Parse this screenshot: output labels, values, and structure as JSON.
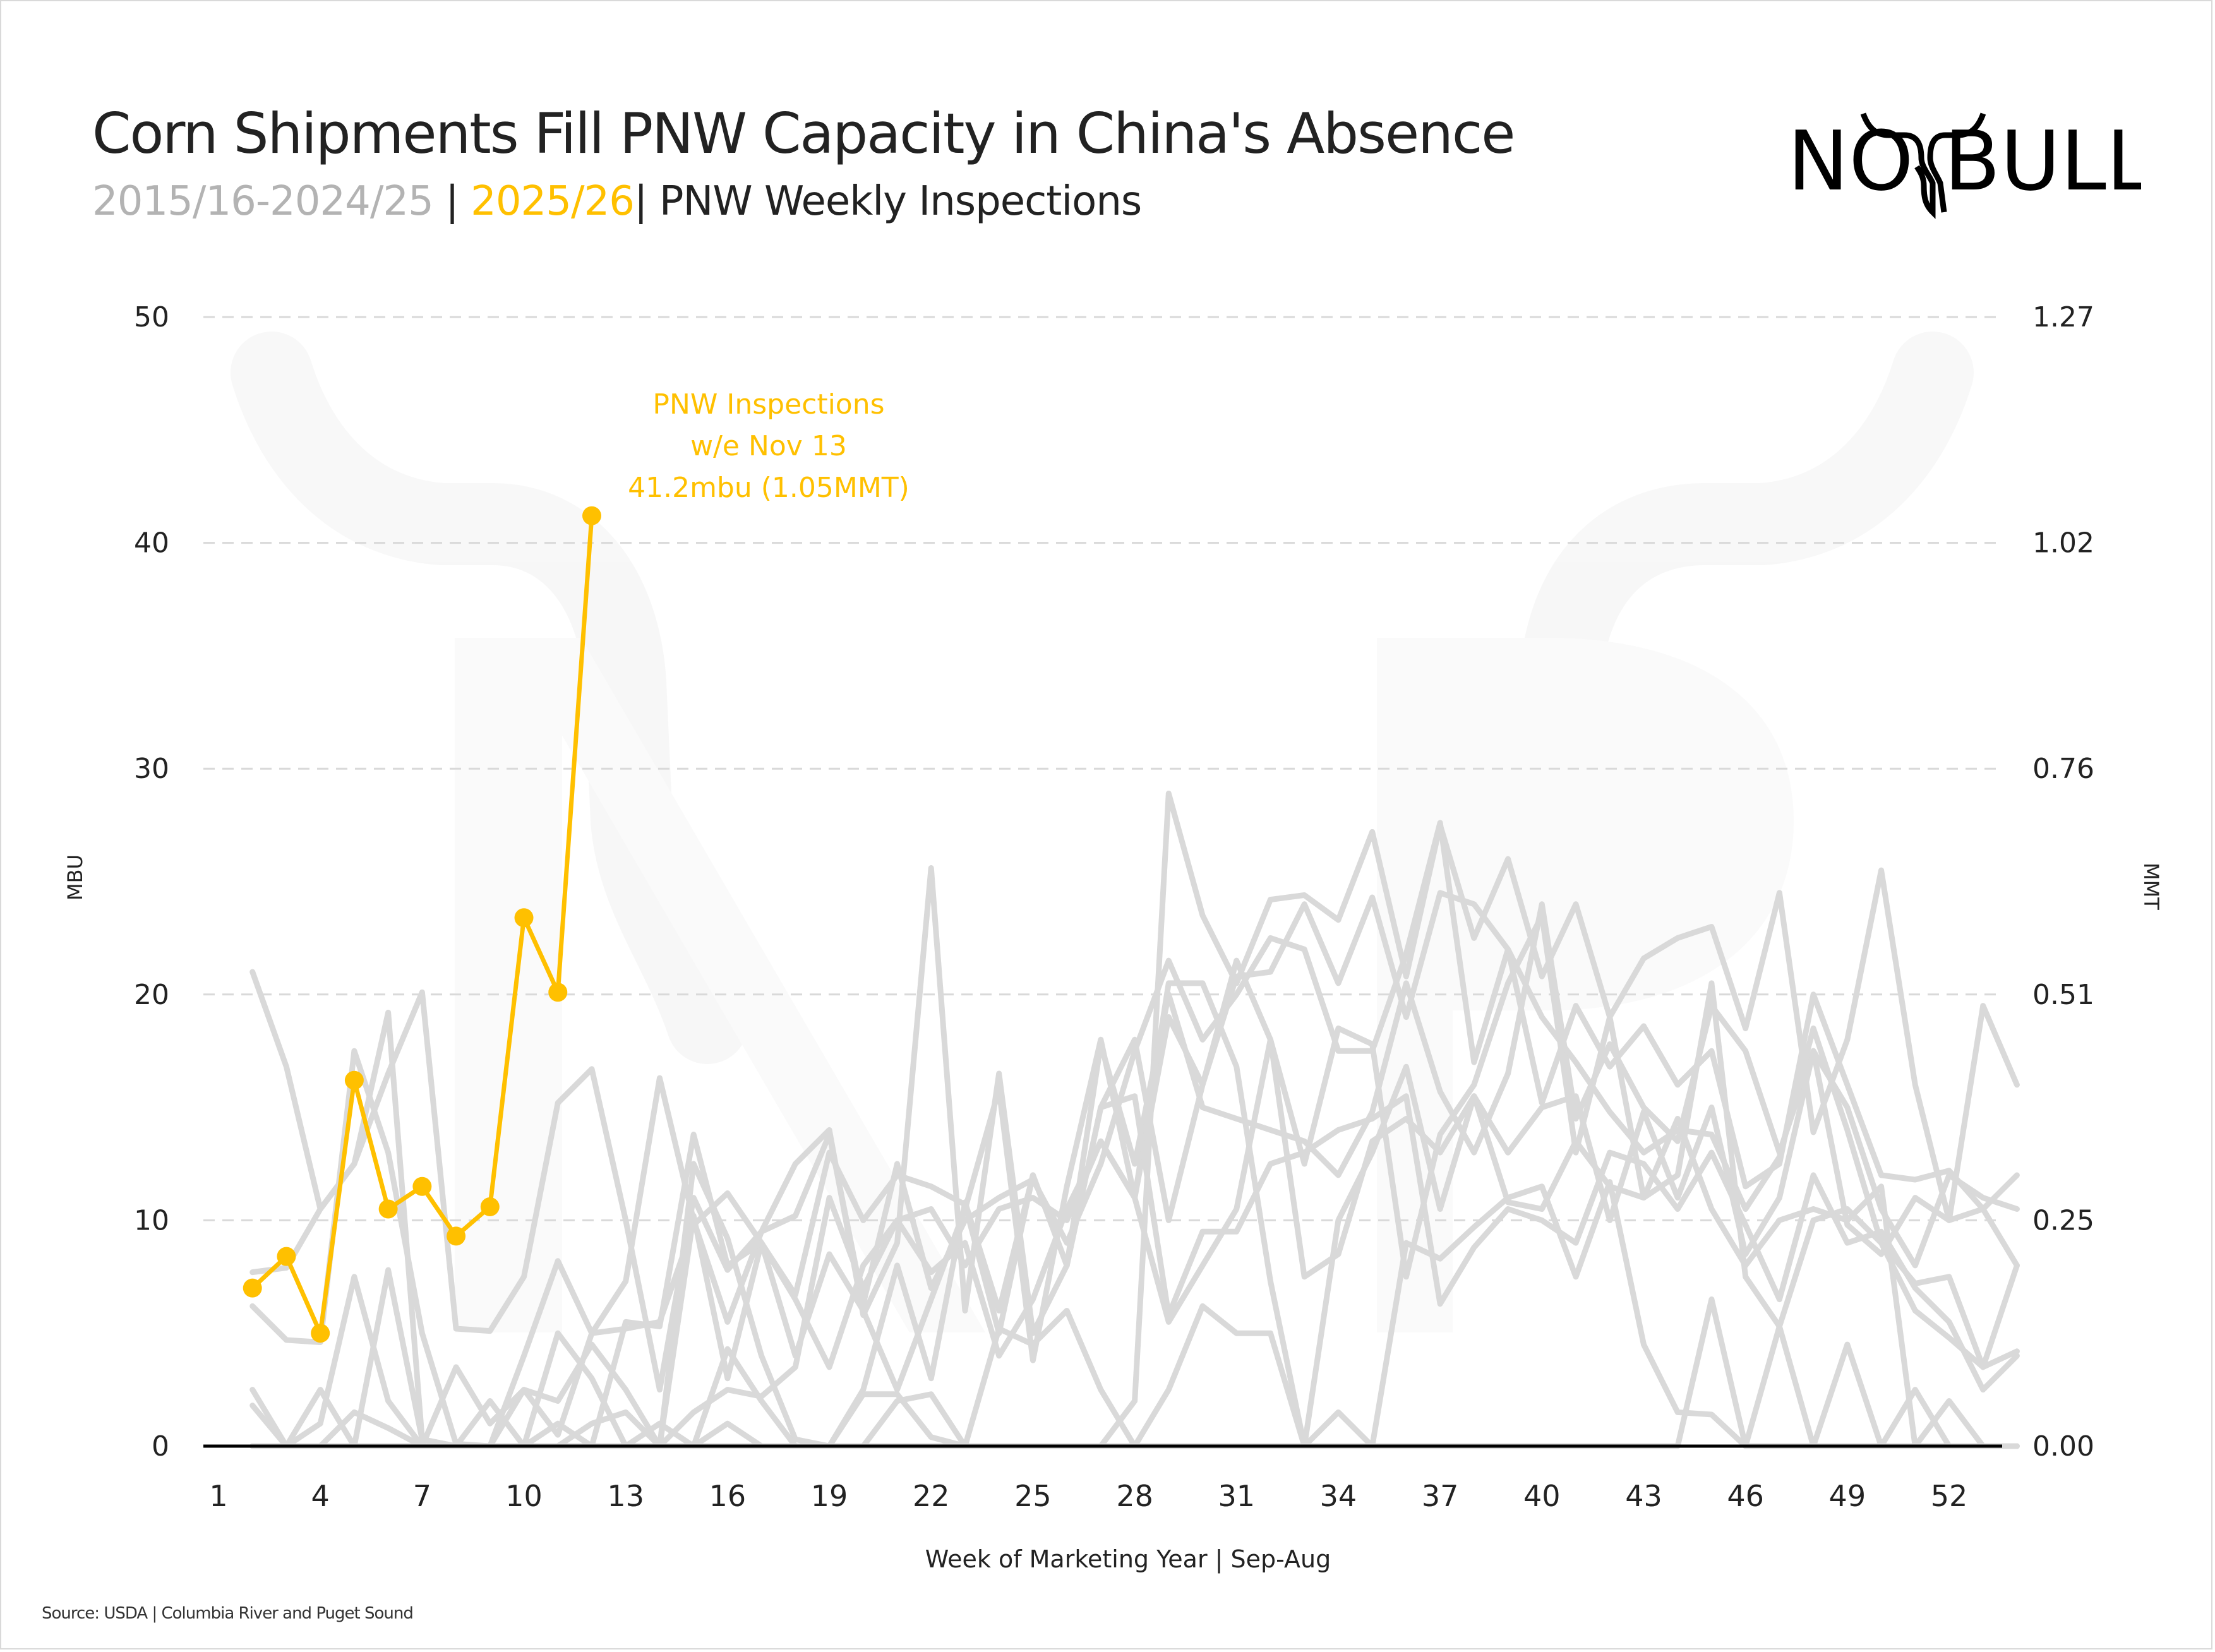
{
  "header": {
    "title": "Corn Shipments Fill PNW Capacity in China's Absence",
    "subtitle_hist": "2015/16-2024/25",
    "subtitle_sep1": "|",
    "subtitle_cur": "2025/26",
    "subtitle_sep2": "|",
    "subtitle_main": "PNW Weekly Inspections"
  },
  "logo": {
    "text_left": "NO",
    "text_right": "BULL",
    "icon": "bull-horns-icon"
  },
  "footer": {
    "source": "Source: USDA | Columbia River and Puget Sound"
  },
  "colors": {
    "current": "#ffc000",
    "history": "#d9d9d9",
    "grid": "#d9d9d9",
    "axis": "#000000",
    "text": "#222222"
  },
  "chart_data": {
    "type": "line",
    "title": "Corn Shipments Fill PNW Capacity in China's Absence",
    "xlabel": "Week of Marketing Year | Sep-Aug",
    "ylabel": "MBU",
    "y2label": "MMT",
    "xlim": [
      1,
      53
    ],
    "ylim": [
      0,
      50
    ],
    "x_ticks": [
      1,
      4,
      7,
      10,
      13,
      16,
      19,
      22,
      25,
      28,
      31,
      34,
      37,
      40,
      43,
      46,
      49,
      52
    ],
    "y_ticks": [
      0,
      10,
      20,
      30,
      40,
      50
    ],
    "y2_ticks": [
      "0.00",
      "0.25",
      "0.51",
      "0.76",
      "1.02",
      "1.27"
    ],
    "grid": true,
    "annotation": {
      "lines": [
        "PNW Inspections",
        "w/e Nov 13",
        "41.2mbu (1.05MMT)"
      ],
      "x": 12,
      "y": 41.2
    },
    "current_series": {
      "name": "2025/26",
      "x": [
        2,
        3,
        4,
        5,
        6,
        7,
        8,
        9,
        10,
        11,
        12
      ],
      "values": [
        7.0,
        8.4,
        5.0,
        16.2,
        10.5,
        11.5,
        9.3,
        10.6,
        23.4,
        20.1,
        41.2
      ]
    },
    "history_x_start": 2,
    "history_series": [
      {
        "name": "hist-1",
        "values": [
          21.0,
          16.8,
          10.5,
          12.5,
          19.2,
          0.3,
          0.0,
          0.0,
          0.0,
          1.0,
          0.0,
          0.0,
          1.0,
          0.0,
          1.0,
          0.0,
          0.0,
          0.0,
          2.3,
          2.3,
          0.4,
          0.0,
          0.0,
          0.0,
          0.0,
          0.0,
          2.0,
          28.9,
          23.5,
          20.5,
          24.2,
          24.4,
          23.3,
          27.2,
          20.8,
          27.5,
          22.5,
          26.0,
          20.8,
          24.0,
          19.0,
          21.6,
          22.5,
          23.0,
          18.5,
          24.5,
          13.9,
          18.0,
          25.5,
          16.0,
          10.0,
          19.5,
          16.0
        ]
      },
      {
        "name": "hist-2",
        "values": [
          7.7,
          7.9,
          10.5,
          12.5,
          16.5,
          20.1,
          5.2,
          5.1,
          7.5,
          15.2,
          16.7,
          10.0,
          2.5,
          11.0,
          7.8,
          9.5,
          10.2,
          13.8,
          6.3,
          12.5,
          7.0,
          10.0,
          11.0,
          11.8,
          9.0,
          12.5,
          17.5,
          21.5,
          18.0,
          20.0,
          22.5,
          22.0,
          17.5,
          17.5,
          21.8,
          27.6,
          17.0,
          22.0,
          15.2,
          19.5,
          16.8,
          18.6,
          16.0,
          17.5,
          11.5,
          12.5,
          20.0,
          16.0,
          12.0,
          11.8,
          12.2,
          10.5,
          8.0
        ]
      },
      {
        "name": "hist-3",
        "values": [
          6.2,
          4.7,
          4.6,
          17.5,
          13.0,
          5.0,
          0.1,
          0.0,
          4.0,
          8.2,
          5.0,
          7.3,
          16.3,
          10.0,
          5.5,
          9.5,
          12.5,
          14.0,
          5.8,
          9.0,
          25.6,
          6.0,
          16.5,
          5.0,
          8.0,
          17.8,
          12.5,
          20.0,
          15.0,
          14.5,
          14.0,
          13.5,
          12.0,
          14.8,
          20.5,
          15.7,
          13.0,
          16.5,
          24.0,
          14.5,
          17.8,
          15.0,
          13.5,
          19.5,
          17.5,
          13.0,
          17.5,
          15.0,
          10.5,
          8.0,
          12.0,
          11.0,
          10.5
        ]
      },
      {
        "name": "hist-4",
        "values": [
          2.5,
          0.0,
          2.5,
          0.0,
          7.8,
          0.3,
          0.0,
          2.0,
          0.0,
          5.0,
          3.0,
          0.0,
          0.0,
          12.5,
          9.2,
          4.0,
          0.3,
          0.0,
          2.5,
          8.0,
          3.0,
          10.8,
          6.0,
          12.0,
          8.0,
          15.0,
          18.0,
          10.0,
          16.0,
          20.8,
          21.0,
          24.0,
          20.5,
          24.3,
          19.0,
          24.5,
          24.0,
          22.0,
          19.0,
          17.0,
          14.8,
          13.0,
          14.0,
          13.8,
          10.5,
          12.8,
          18.5,
          14.0,
          9.0,
          7.2,
          7.5,
          3.5,
          4.2
        ]
      },
      {
        "name": "hist-5",
        "values": [
          1.8,
          0.0,
          1.0,
          7.5,
          2.0,
          0.0,
          3.5,
          1.0,
          2.5,
          0.5,
          5.0,
          5.2,
          5.5,
          9.8,
          11.2,
          9.0,
          4.0,
          8.5,
          6.0,
          2.5,
          6.5,
          10.5,
          15.8,
          3.8,
          11.5,
          18.0,
          11.0,
          19.0,
          16.0,
          21.5,
          18.0,
          12.5,
          18.5,
          17.8,
          7.5,
          13.8,
          16.0,
          20.5,
          23.5,
          13.0,
          19.0,
          11.0,
          12.0,
          20.5,
          7.5,
          5.3,
          10.0,
          10.5,
          9.0,
          6.0,
          4.8,
          3.5,
          8.0
        ]
      },
      {
        "name": "hist-6",
        "values": [
          0.0,
          0.0,
          0.0,
          1.5,
          0.8,
          0.0,
          0.0,
          0.0,
          2.5,
          2.0,
          4.5,
          2.5,
          0.0,
          1.5,
          2.5,
          2.2,
          3.5,
          11.0,
          7.0,
          10.0,
          7.7,
          9.0,
          4.0,
          6.5,
          10.5,
          13.5,
          11.0,
          20.5,
          20.5,
          16.8,
          7.3,
          0.0,
          10.0,
          13.0,
          16.8,
          10.5,
          15.5,
          13.0,
          15.0,
          15.5,
          10.0,
          14.8,
          11.0,
          15.0,
          8.5,
          11.0,
          17.5,
          9.8,
          8.5,
          11.0,
          10.0,
          10.5,
          12.0
        ]
      },
      {
        "name": "hist-7",
        "values": [
          0.0,
          0.0,
          0.0,
          0.0,
          0.0,
          0.0,
          0.0,
          0.0,
          0.0,
          0.0,
          1.0,
          1.5,
          0.0,
          10.2,
          3.0,
          9.0,
          6.5,
          3.5,
          8.0,
          10.0,
          10.5,
          8.0,
          10.5,
          11.0,
          10.0,
          13.5,
          11.0,
          5.5,
          8.0,
          10.5,
          18.0,
          7.5,
          8.5,
          13.5,
          14.5,
          13.0,
          15.5,
          10.8,
          10.5,
          13.5,
          11.5,
          11.0,
          14.5,
          10.5,
          8.0,
          10.0,
          10.5,
          10.0,
          11.5,
          0.0,
          2.0,
          0.0,
          0.0
        ]
      },
      {
        "name": "hist-8",
        "values": [
          0.0,
          0.0,
          0.0,
          0.0,
          0.0,
          0.0,
          0.0,
          0.0,
          0.0,
          0.0,
          0.0,
          5.5,
          5.3,
          13.8,
          8.0,
          9.0,
          6.7,
          13.0,
          10.0,
          12.0,
          11.5,
          10.7,
          5.0,
          12.0,
          8.0,
          15.0,
          15.5,
          5.8,
          9.5,
          9.5,
          12.5,
          13.0,
          14.0,
          14.5,
          15.5,
          6.3,
          8.8,
          10.5,
          10.0,
          9.0,
          13.0,
          12.5,
          10.5,
          13.0,
          9.8,
          6.5,
          12.0,
          9.0,
          9.5,
          7.0,
          5.5,
          2.5,
          4.0
        ]
      },
      {
        "name": "hist-9",
        "values": [
          0.0,
          0.0,
          0.0,
          0.0,
          0.0,
          0.0,
          0.0,
          0.0,
          0.0,
          0.0,
          0.0,
          0.0,
          0.0,
          0.0,
          4.3,
          2.0,
          0.0,
          0.0,
          0.0,
          2.0,
          2.3,
          0.0,
          5.2,
          4.5,
          6.0,
          2.5,
          0.0,
          2.5,
          6.2,
          5.0,
          5.0,
          0.0,
          1.5,
          0.0,
          9.0,
          8.3,
          9.7,
          11.0,
          11.5,
          7.5,
          11.7,
          4.5,
          1.5,
          1.4,
          0.0,
          0.0,
          0.0,
          0.0,
          0.0,
          0.0,
          0.0,
          0.0,
          0.0
        ]
      },
      {
        "name": "hist-10",
        "values": [
          0.0,
          0.0,
          0.0,
          0.0,
          0.0,
          0.0,
          0.0,
          0.0,
          0.0,
          0.0,
          0.0,
          0.0,
          0.0,
          0.0,
          0.0,
          0.0,
          0.0,
          0.0,
          0.0,
          0.0,
          0.0,
          0.0,
          0.0,
          0.0,
          0.0,
          0.0,
          0.0,
          0.0,
          0.0,
          0.0,
          0.0,
          0.0,
          0.0,
          0.0,
          0.0,
          0.0,
          0.0,
          0.0,
          0.0,
          0.0,
          0.0,
          0.0,
          0.0,
          6.5,
          0.0,
          5.3,
          0.0,
          4.5,
          0.0,
          2.5,
          0.0,
          0.0,
          0.0
        ]
      }
    ]
  }
}
